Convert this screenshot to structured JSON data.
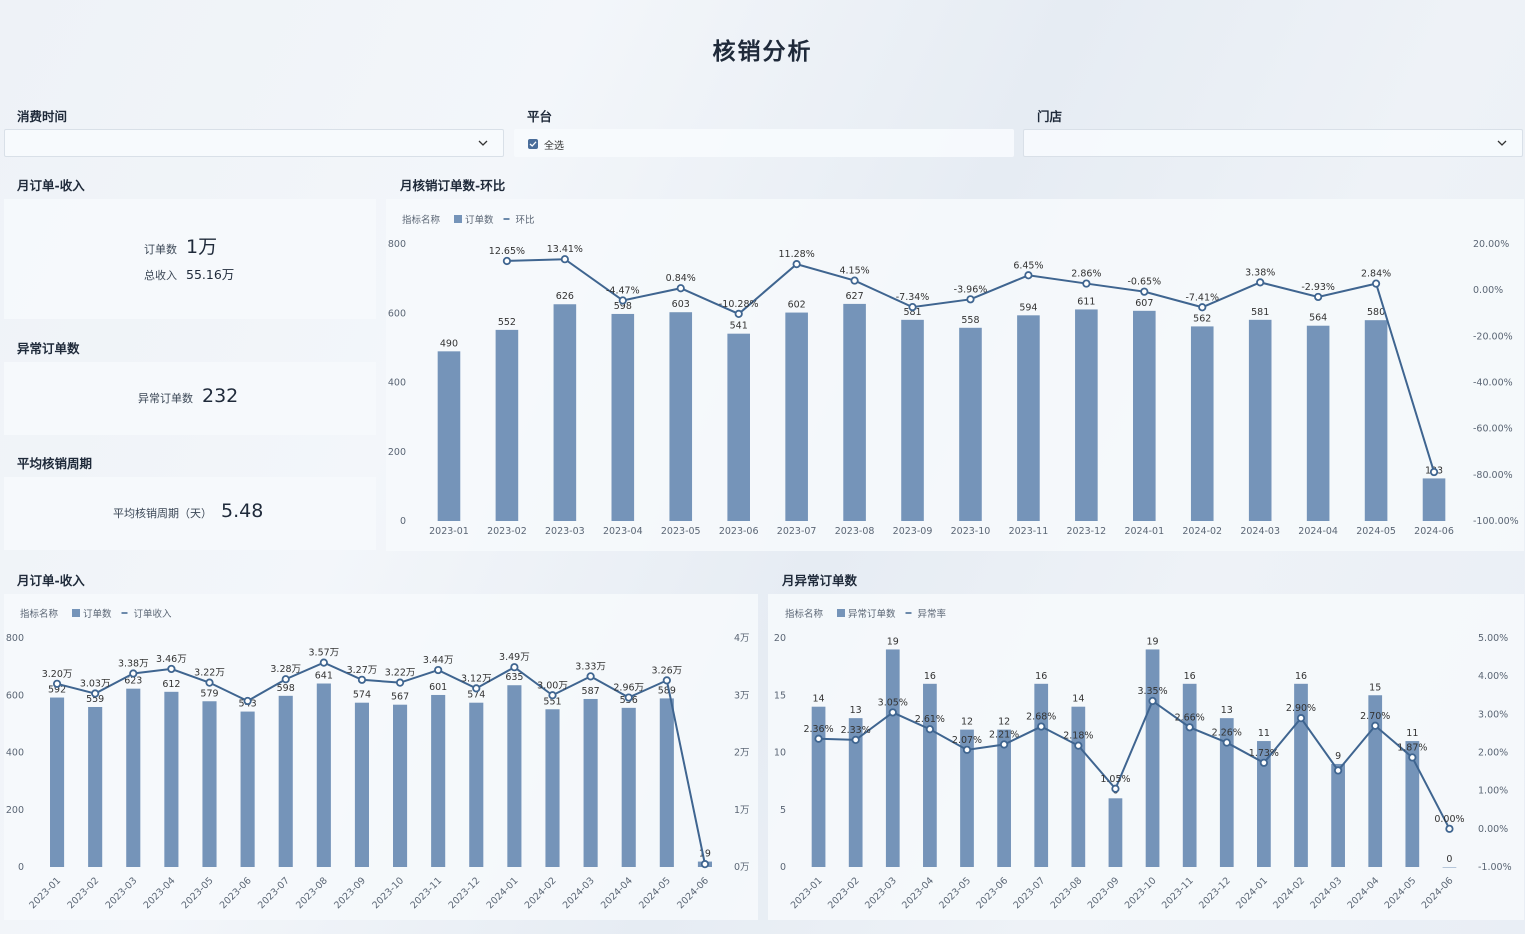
{
  "title": "核销分析",
  "filters": {
    "time_label": "消费时间",
    "platform_label": "平台",
    "platform_option": "全选",
    "store_label": "门店"
  },
  "kpi": {
    "section1_title": "月订单-收入",
    "orders_label": "订单数",
    "orders_value": "1万",
    "revenue_label": "总收入",
    "revenue_value": "55.16万",
    "section2_title": "异常订单数",
    "abnormal_label": "异常订单数",
    "abnormal_value": "232",
    "section3_title": "平均核销周期",
    "cycle_label": "平均核销周期（天）",
    "cycle_value": "5.48"
  },
  "colors": {
    "bar": "#7594b9",
    "line": "#3f6590",
    "text": "#5b6675"
  },
  "chart_data": [
    {
      "id": "monthly-orders-mom",
      "type": "bar",
      "title": "月核销订单数-环比",
      "legend_title": "指标名称",
      "legend": [
        "订单数",
        "环比"
      ],
      "categories": [
        "2023-01",
        "2023-02",
        "2023-03",
        "2023-04",
        "2023-05",
        "2023-06",
        "2023-07",
        "2023-08",
        "2023-09",
        "2023-10",
        "2023-11",
        "2023-12",
        "2024-01",
        "2024-02",
        "2024-03",
        "2024-04",
        "2024-05",
        "2024-06"
      ],
      "series": [
        {
          "name": "订单数",
          "axis": "left",
          "values": [
            490,
            552,
            626,
            598,
            603,
            541,
            602,
            627,
            581,
            558,
            594,
            611,
            607,
            562,
            581,
            564,
            580,
            123
          ],
          "labels": [
            "490",
            "552",
            "626",
            "598",
            "603",
            "541",
            "602",
            "627",
            "581",
            "558",
            "594",
            "611",
            "607",
            "562",
            "581",
            "564",
            "580",
            "123"
          ]
        },
        {
          "name": "环比",
          "type": "line",
          "axis": "right",
          "values": [
            null,
            12.65,
            13.41,
            -4.47,
            0.84,
            -10.28,
            11.28,
            4.15,
            -7.34,
            -3.96,
            6.45,
            2.86,
            -0.65,
            -7.41,
            3.38,
            -2.93,
            2.84,
            -78.79
          ],
          "labels": [
            "",
            "12.65%",
            "13.41%",
            "-4.47%",
            "0.84%",
            "-10.28%",
            "11.28%",
            "4.15%",
            "-7.34%",
            "-3.96%",
            "6.45%",
            "2.86%",
            "-0.65%",
            "-7.41%",
            "3.38%",
            "-2.93%",
            "2.84%",
            ""
          ]
        }
      ],
      "ylim": [
        0,
        800
      ],
      "yticks": [
        "800",
        "600",
        "400",
        "200",
        "0"
      ],
      "y2lim": [
        -100,
        20
      ],
      "y2ticks": [
        "20.00%",
        "0.00%",
        "-20.00%",
        "-40.00%",
        "-60.00%",
        "-80.00%",
        "-100.00%"
      ],
      "xlabel": "",
      "ylabel": ""
    },
    {
      "id": "monthly-orders-revenue",
      "type": "bar",
      "title": "月订单-收入",
      "legend_title": "指标名称",
      "legend": [
        "订单数",
        "订单收入"
      ],
      "categories": [
        "2023-01",
        "2023-02",
        "2023-03",
        "2023-04",
        "2023-05",
        "2023-06",
        "2023-07",
        "2023-08",
        "2023-09",
        "2023-10",
        "2023-11",
        "2023-12",
        "2024-01",
        "2024-02",
        "2024-03",
        "2024-04",
        "2024-05",
        "2024-06"
      ],
      "series": [
        {
          "name": "订单数",
          "axis": "left",
          "values": [
            592,
            559,
            623,
            612,
            579,
            543,
            598,
            641,
            574,
            567,
            601,
            574,
            635,
            551,
            587,
            556,
            589,
            19
          ],
          "labels": [
            "592",
            "559",
            "623",
            "612",
            "579",
            "543",
            "598",
            "641",
            "574",
            "567",
            "601",
            "574",
            "635",
            "551",
            "587",
            "556",
            "589",
            "19"
          ]
        },
        {
          "name": "订单收入",
          "type": "line",
          "axis": "right",
          "values": [
            3.2,
            3.03,
            3.38,
            3.46,
            3.22,
            2.9,
            3.28,
            3.57,
            3.27,
            3.22,
            3.44,
            3.12,
            3.49,
            3.0,
            3.33,
            2.96,
            3.26,
            0.05
          ],
          "labels": [
            "3.20万",
            "3.03万",
            "3.38万",
            "3.46万",
            "3.22万",
            "",
            "3.28万",
            "3.57万",
            "3.27万",
            "3.22万",
            "3.44万",
            "3.12万",
            "3.49万",
            "3.00万",
            "3.33万",
            "2.96万",
            "3.26万",
            ""
          ]
        }
      ],
      "ylim": [
        0,
        800
      ],
      "yticks": [
        "800",
        "600",
        "400",
        "200",
        "0"
      ],
      "y2lim": [
        0,
        4
      ],
      "y2ticks": [
        "4万",
        "3万",
        "2万",
        "1万",
        "0万"
      ],
      "xlabel": "",
      "ylabel": ""
    },
    {
      "id": "monthly-abnormal-orders",
      "type": "bar",
      "title": "月异常订单数",
      "legend_title": "指标名称",
      "legend": [
        "异常订单数",
        "异常率"
      ],
      "categories": [
        "2023-01",
        "2023-02",
        "2023-03",
        "2023-04",
        "2023-05",
        "2023-06",
        "2023-07",
        "2023-08",
        "2023-09",
        "2023-10",
        "2023-11",
        "2023-12",
        "2024-01",
        "2024-02",
        "2024-03",
        "2024-04",
        "2024-05",
        "2024-06"
      ],
      "series": [
        {
          "name": "异常订单数",
          "axis": "left",
          "values": [
            14,
            13,
            19,
            16,
            12,
            12,
            16,
            14,
            6,
            19,
            16,
            13,
            11,
            16,
            9,
            15,
            11,
            0
          ],
          "labels": [
            "14",
            "13",
            "19",
            "16",
            "12",
            "12",
            "16",
            "14",
            "6",
            "19",
            "16",
            "13",
            "11",
            "16",
            "9",
            "15",
            "11",
            "0"
          ]
        },
        {
          "name": "异常率",
          "type": "line",
          "axis": "right",
          "values": [
            2.36,
            2.33,
            3.05,
            2.61,
            2.07,
            2.21,
            2.68,
            2.18,
            1.05,
            3.35,
            2.66,
            2.26,
            1.73,
            2.9,
            1.53,
            2.7,
            1.87,
            0.0
          ],
          "labels": [
            "2.36%",
            "2.33%",
            "3.05%",
            "2.61%",
            "2.07%",
            "2.21%",
            "2.68%",
            "2.18%",
            "1.05%",
            "3.35%",
            "2.66%",
            "2.26%",
            "1.73%",
            "2.90%",
            "",
            "2.70%",
            "1.87%",
            "0.00%"
          ]
        }
      ],
      "ylim": [
        0,
        20
      ],
      "yticks": [
        "20",
        "15",
        "10",
        "5",
        "0"
      ],
      "y2lim": [
        -1,
        5
      ],
      "y2ticks": [
        "5.00%",
        "4.00%",
        "3.00%",
        "2.00%",
        "1.00%",
        "0.00%",
        "-1.00%"
      ],
      "xlabel": "",
      "ylabel": ""
    }
  ]
}
